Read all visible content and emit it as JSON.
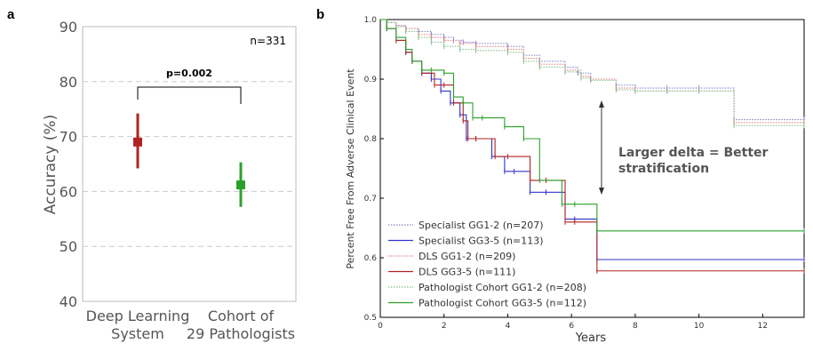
{
  "panels": {
    "a_label": "a",
    "b_label": "b"
  },
  "colors": {
    "red": "#b22222",
    "green": "#2ca02c",
    "blue": "#3333cc",
    "grid": "#cccccc",
    "text_gray": "#555555"
  },
  "chart_data": [
    {
      "type": "scatter",
      "title": "",
      "xlabel": "",
      "ylabel": "Accuracy (%)",
      "ylim": [
        40,
        90
      ],
      "yticks": [
        "40",
        "50",
        "60",
        "70",
        "80",
        "90"
      ],
      "grid": "horizontal dashed",
      "categories": [
        "Deep Learning\nSystem",
        "Cohort of\n29 Pathologists"
      ],
      "category_lines": [
        [
          "Deep Learning",
          "System"
        ],
        [
          "Cohort of",
          "29 Pathologists"
        ]
      ],
      "points": [
        {
          "category": "Deep Learning System",
          "value": 69,
          "ci": [
            64.2,
            74.2
          ],
          "color": "#b22222"
        },
        {
          "category": "Cohort of 29 Pathologists",
          "value": 61.2,
          "ci": [
            57.2,
            65.3
          ],
          "color": "#2ca02c"
        }
      ],
      "annotations": {
        "n": "n=331",
        "pvalue": "p=0.002"
      }
    },
    {
      "type": "line",
      "title": "",
      "xlabel": "Years",
      "ylabel": "Percent Free From Adverse Clinical Event",
      "xlim": [
        0,
        13.3
      ],
      "ylim": [
        0.5,
        1.0
      ],
      "xticks": [
        "0",
        "2",
        "4",
        "6",
        "8",
        "10",
        "12"
      ],
      "yticks": [
        "0.5",
        "0.6",
        "0.7",
        "0.8",
        "0.9",
        "1.0"
      ],
      "legend_position": "bottom-left",
      "annotation": [
        "Larger delta = Better",
        "stratification"
      ],
      "series": [
        {
          "name": "Specialist GG1-2 (n=207)",
          "color": "#8888cc",
          "dotted": true,
          "x": [
            0,
            0.2,
            0.5,
            0.8,
            1.2,
            1.6,
            2.0,
            2.3,
            2.6,
            3.0,
            4.0,
            4.5,
            5.0,
            5.8,
            6.2,
            6.6,
            7.4,
            8.0,
            9.0,
            10.0,
            11.1,
            13.3
          ],
          "y": [
            1.0,
            0.995,
            0.99,
            0.985,
            0.98,
            0.975,
            0.97,
            0.965,
            0.962,
            0.96,
            0.955,
            0.94,
            0.93,
            0.92,
            0.91,
            0.9,
            0.89,
            0.885,
            0.885,
            0.885,
            0.832,
            0.832
          ]
        },
        {
          "name": "Specialist GG3-5 (n=113)",
          "color": "#3333cc",
          "dotted": false,
          "x": [
            0,
            0.2,
            0.5,
            0.8,
            1.0,
            1.3,
            1.6,
            1.9,
            2.2,
            2.5,
            2.7,
            3.0,
            3.5,
            3.9,
            4.2,
            4.7,
            5.2,
            5.8,
            6.1,
            6.8,
            13.3
          ],
          "y": [
            1.0,
            0.985,
            0.965,
            0.945,
            0.93,
            0.91,
            0.9,
            0.88,
            0.86,
            0.84,
            0.8,
            0.8,
            0.77,
            0.745,
            0.745,
            0.71,
            0.71,
            0.665,
            0.665,
            0.597,
            0.597
          ]
        },
        {
          "name": "DLS GG1-2 (n=209)",
          "color": "#e08080",
          "dotted": true,
          "x": [
            0,
            0.2,
            0.5,
            0.8,
            1.2,
            1.6,
            2.0,
            2.5,
            3.0,
            4.0,
            4.5,
            5.0,
            5.8,
            6.3,
            6.6,
            7.4,
            8.0,
            9.0,
            10.0,
            11.1,
            13.3
          ],
          "y": [
            1.0,
            0.995,
            0.99,
            0.985,
            0.975,
            0.97,
            0.965,
            0.96,
            0.955,
            0.95,
            0.935,
            0.925,
            0.915,
            0.905,
            0.9,
            0.885,
            0.88,
            0.88,
            0.88,
            0.827,
            0.827
          ]
        },
        {
          "name": "DLS GG3-5 (n=111)",
          "color": "#b22222",
          "dotted": false,
          "x": [
            0,
            0.2,
            0.5,
            0.8,
            1.0,
            1.3,
            1.7,
            2.0,
            2.3,
            2.6,
            2.75,
            3.0,
            3.6,
            4.0,
            4.7,
            5.2,
            5.8,
            6.1,
            6.8,
            13.3
          ],
          "y": [
            1.0,
            0.985,
            0.965,
            0.945,
            0.93,
            0.91,
            0.89,
            0.89,
            0.86,
            0.83,
            0.8,
            0.8,
            0.77,
            0.77,
            0.73,
            0.73,
            0.66,
            0.66,
            0.578,
            0.578
          ]
        },
        {
          "name": "Pathologist Cohort GG1-2 (n=208)",
          "color": "#88bb88",
          "dotted": true,
          "x": [
            0,
            0.2,
            0.5,
            0.8,
            1.2,
            1.6,
            2.0,
            2.5,
            3.0,
            4.0,
            4.5,
            5.0,
            5.8,
            6.3,
            6.6,
            7.4,
            8.0,
            9.0,
            10.0,
            11.1,
            13.3
          ],
          "y": [
            1.0,
            0.995,
            0.988,
            0.98,
            0.97,
            0.962,
            0.955,
            0.95,
            0.948,
            0.945,
            0.93,
            0.92,
            0.912,
            0.902,
            0.898,
            0.882,
            0.88,
            0.88,
            0.88,
            0.822,
            0.822
          ]
        },
        {
          "name": "Pathologist Cohort GG3-5 (n=112)",
          "color": "#2ca02c",
          "dotted": false,
          "x": [
            0,
            0.2,
            0.5,
            0.8,
            1.0,
            1.3,
            1.6,
            2.0,
            2.3,
            2.6,
            2.9,
            3.2,
            3.9,
            4.5,
            5.0,
            5.7,
            6.1,
            6.8,
            13.3
          ],
          "y": [
            1.0,
            0.985,
            0.97,
            0.95,
            0.93,
            0.915,
            0.915,
            0.91,
            0.87,
            0.86,
            0.835,
            0.835,
            0.82,
            0.8,
            0.73,
            0.69,
            0.69,
            0.645,
            0.645
          ]
        }
      ]
    }
  ]
}
